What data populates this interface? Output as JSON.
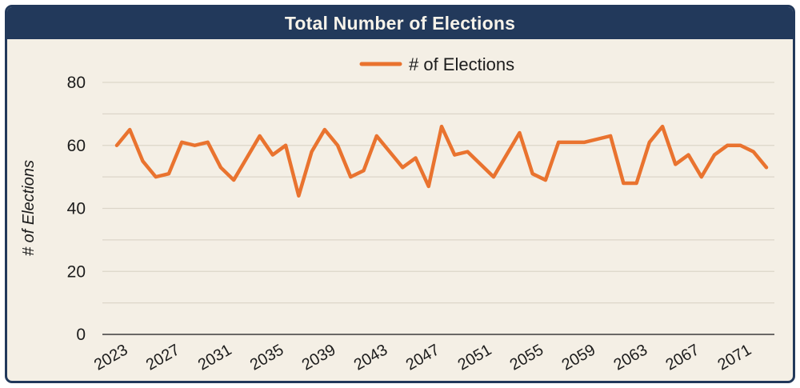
{
  "header": {
    "title": "Total Number of Elections"
  },
  "chart_data": {
    "type": "line",
    "title": "Total Number of Elections",
    "legend": [
      "# of Elections"
    ],
    "legend_position": "top-center",
    "ylabel": "# of Elections",
    "xlabel": "",
    "grid": true,
    "ylim": [
      0,
      80
    ],
    "ytick_step": 20,
    "grid_step": 10,
    "x_tick_start": 2023,
    "x_tick_step": 4,
    "x_tick_end": 2071,
    "x": [
      2023,
      2024,
      2025,
      2026,
      2027,
      2028,
      2029,
      2030,
      2031,
      2032,
      2033,
      2034,
      2035,
      2036,
      2037,
      2038,
      2039,
      2040,
      2041,
      2042,
      2043,
      2044,
      2045,
      2046,
      2047,
      2048,
      2049,
      2050,
      2051,
      2052,
      2053,
      2054,
      2055,
      2056,
      2057,
      2058,
      2059,
      2060,
      2061,
      2062,
      2063,
      2064,
      2065,
      2066,
      2067,
      2068,
      2069,
      2070,
      2071,
      2072,
      2073
    ],
    "series": [
      {
        "name": "# of Elections",
        "values": [
          60,
          65,
          55,
          50,
          51,
          61,
          60,
          61,
          53,
          49,
          56,
          63,
          57,
          60,
          44,
          58,
          65,
          60,
          50,
          52,
          63,
          58,
          53,
          56,
          47,
          66,
          57,
          58,
          54,
          50,
          57,
          64,
          51,
          49,
          61,
          61,
          61,
          62,
          63,
          48,
          48,
          61,
          66,
          54,
          57,
          50,
          57,
          60,
          60,
          58,
          53
        ]
      }
    ],
    "colors": {
      "line": "#e9732f",
      "header_bg": "#22395b",
      "border": "#22395b",
      "plot_bg": "#f4efe5",
      "grid": "#dcd6c9",
      "axis": "#3c3c3c",
      "text": "#1c1c1c",
      "title_text": "#f7f3ea"
    }
  }
}
